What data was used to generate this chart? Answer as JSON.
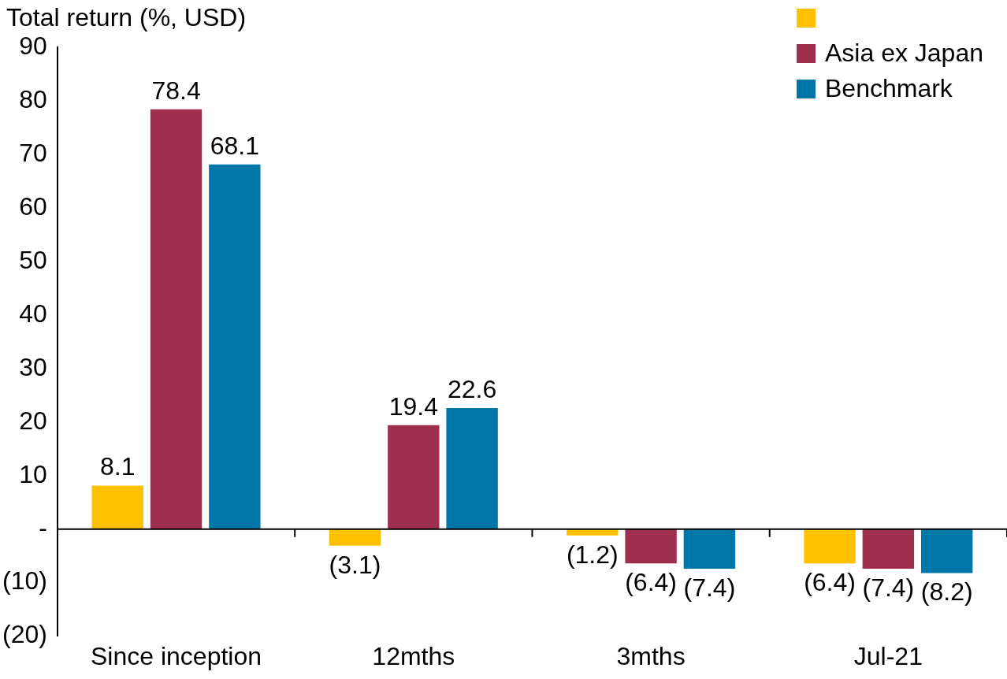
{
  "chart_data": {
    "type": "bar",
    "ylabel": "Total return (%, USD)",
    "categories": [
      "Since inception",
      "12mths",
      "3mths",
      "Jul-21"
    ],
    "series": [
      {
        "color": "#ffc000",
        "values": [
          8.1,
          -3.1,
          -1.2,
          -6.4
        ],
        "value_labels": [
          "8.1",
          "(3.1)",
          "(1.2)",
          "(6.4)"
        ]
      },
      {
        "name": "Asia ex Japan",
        "color": "#9e2f4f",
        "values": [
          78.4,
          19.4,
          -6.4,
          -7.4
        ],
        "value_labels": [
          "78.4",
          "19.4",
          "(6.4)",
          "(7.4)"
        ]
      },
      {
        "name": "Benchmark",
        "color": "#0077a8",
        "values": [
          68.1,
          22.6,
          -7.4,
          -8.2
        ],
        "value_labels": [
          "68.1",
          "22.6",
          "(7.4)",
          "(8.2)"
        ]
      }
    ],
    "ylim": [
      -20,
      90
    ],
    "yticks": [
      {
        "value": -20,
        "label": "(20)"
      },
      {
        "value": -10,
        "label": "(10)"
      },
      {
        "value": 0,
        "label": "-"
      },
      10,
      20,
      30,
      40,
      50,
      60,
      70,
      80,
      90
    ],
    "legend": "top right"
  }
}
